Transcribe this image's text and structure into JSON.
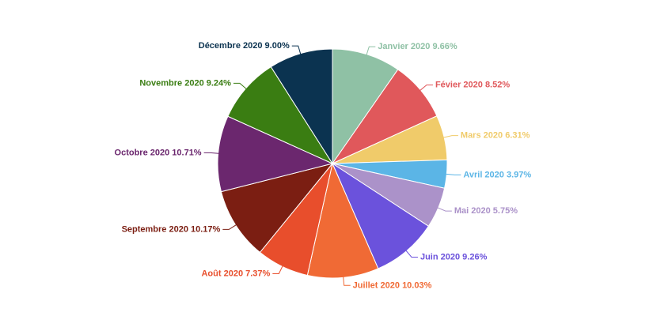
{
  "chart_data": {
    "type": "pie",
    "categories": [
      "Janvier 2020",
      "Févier 2020",
      "Mars 2020",
      "Avril 2020",
      "Mai 2020",
      "Juin 2020",
      "Juillet 2020",
      "Août 2020",
      "Septembre 2020",
      "Octobre 2020",
      "Novembre 2020",
      "Décembre 2020"
    ],
    "values": [
      9.66,
      8.52,
      6.31,
      3.97,
      5.75,
      9.26,
      10.03,
      7.37,
      10.17,
      10.71,
      9.24,
      9.0
    ],
    "value_labels": [
      "9.66%",
      "8.52%",
      "6.31%",
      "3.97%",
      "5.75%",
      "9.26%",
      "10.03%",
      "7.37%",
      "10.17%",
      "10.71%",
      "9.24%",
      "9.00%"
    ],
    "colors": [
      "#8fc1a5",
      "#e0585b",
      "#f0cb6a",
      "#5bb5e6",
      "#ab92c9",
      "#6b52dc",
      "#f06a35",
      "#e84e2c",
      "#7b1e12",
      "#6b276e",
      "#3a7d12",
      "#0b3350"
    ]
  }
}
